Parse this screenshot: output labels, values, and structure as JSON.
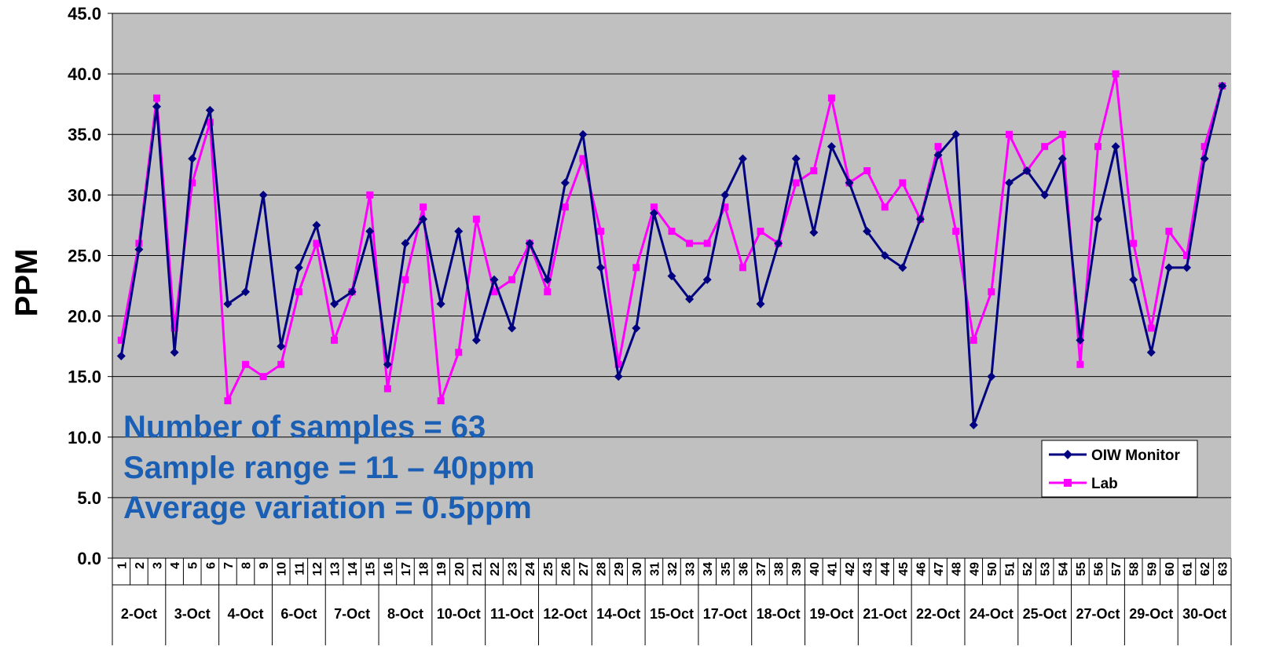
{
  "chart_data": {
    "type": "line",
    "xlabel": "",
    "ylabel": "PPM",
    "ylim": [
      0,
      45
    ],
    "yticks": [
      "0.0",
      "5.0",
      "10.0",
      "15.0",
      "20.0",
      "25.0",
      "30.0",
      "35.0",
      "40.0",
      "45.0"
    ],
    "grid": true,
    "legend_position": "bottom-right",
    "plot_background": "#c0c0c0",
    "samples": [
      1,
      2,
      3,
      4,
      5,
      6,
      7,
      8,
      9,
      10,
      11,
      12,
      13,
      14,
      15,
      16,
      17,
      18,
      19,
      20,
      21,
      22,
      23,
      24,
      25,
      26,
      27,
      28,
      29,
      30,
      31,
      32,
      33,
      34,
      35,
      36,
      37,
      38,
      39,
      40,
      41,
      42,
      43,
      44,
      45,
      46,
      47,
      48,
      49,
      50,
      51,
      52,
      53,
      54,
      55,
      56,
      57,
      58,
      59,
      60,
      61,
      62,
      63
    ],
    "date_groups": [
      {
        "label": "2-Oct",
        "start": 1,
        "end": 3
      },
      {
        "label": "3-Oct",
        "start": 4,
        "end": 6
      },
      {
        "label": "4-Oct",
        "start": 7,
        "end": 9
      },
      {
        "label": "6-Oct",
        "start": 10,
        "end": 12
      },
      {
        "label": "7-Oct",
        "start": 13,
        "end": 15
      },
      {
        "label": "8-Oct",
        "start": 16,
        "end": 18
      },
      {
        "label": "10-Oct",
        "start": 19,
        "end": 21
      },
      {
        "label": "11-Oct",
        "start": 22,
        "end": 24
      },
      {
        "label": "12-Oct",
        "start": 25,
        "end": 27
      },
      {
        "label": "14-Oct",
        "start": 28,
        "end": 30
      },
      {
        "label": "15-Oct",
        "start": 31,
        "end": 33
      },
      {
        "label": "17-Oct",
        "start": 34,
        "end": 36
      },
      {
        "label": "18-Oct",
        "start": 37,
        "end": 39
      },
      {
        "label": "19-Oct",
        "start": 40,
        "end": 42
      },
      {
        "label": "21-Oct",
        "start": 43,
        "end": 45
      },
      {
        "label": "22-Oct",
        "start": 46,
        "end": 48
      },
      {
        "label": "24-Oct",
        "start": 49,
        "end": 51
      },
      {
        "label": "25-Oct",
        "start": 52,
        "end": 54
      },
      {
        "label": "27-Oct",
        "start": 55,
        "end": 57
      },
      {
        "label": "29-Oct",
        "start": 58,
        "end": 60
      },
      {
        "label": "30-Oct",
        "start": 61,
        "end": 63
      }
    ],
    "series": [
      {
        "name": "OIW Monitor",
        "color": "#000080",
        "marker": "diamond",
        "values": [
          16.7,
          25.5,
          37.3,
          17,
          33,
          37,
          21,
          22,
          30,
          17.5,
          24,
          27.5,
          21,
          22,
          27,
          16,
          26,
          28,
          21,
          27,
          18,
          23,
          19,
          26,
          23,
          31,
          35,
          24,
          15,
          19,
          28.5,
          23.3,
          21.4,
          23,
          30,
          33,
          21,
          26,
          33,
          26.9,
          34,
          31,
          27,
          25,
          24,
          28,
          33.3,
          35,
          11,
          15,
          31,
          32,
          30,
          33,
          18,
          28,
          34,
          23,
          17,
          24,
          24,
          33,
          39
        ]
      },
      {
        "name": "Lab",
        "color": "#ff00ff",
        "marker": "square",
        "values": [
          18,
          26,
          38,
          19,
          31,
          36,
          13,
          16,
          15,
          16,
          22,
          26,
          18,
          22,
          30,
          14,
          23,
          29,
          13,
          17,
          28,
          22,
          23,
          26,
          22,
          29,
          33,
          27,
          16,
          24,
          29,
          27,
          26,
          26,
          29,
          24,
          27,
          26,
          31,
          32,
          38,
          31,
          32,
          29,
          31,
          28,
          34,
          27,
          18,
          22,
          35,
          32,
          34,
          35,
          16,
          34,
          40,
          26,
          19,
          27,
          25,
          34,
          39
        ]
      }
    ],
    "annotations": [
      "Number of samples = 63",
      "Sample range = 11 – 40ppm",
      "Average variation = 0.5ppm"
    ],
    "annotation_color": "#1a5fb4"
  }
}
